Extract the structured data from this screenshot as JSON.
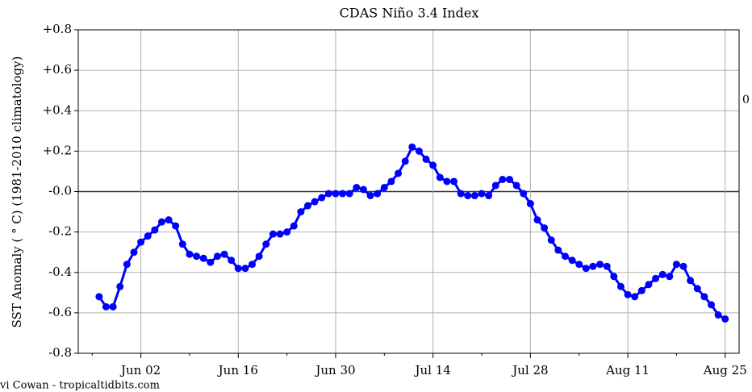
{
  "chart_data": {
    "type": "line",
    "title": "CDAS Niño 3.4 Index",
    "y_label": "SST Anomaly ( ° C) (1981-2010 climatology)",
    "right_label": "0",
    "credit": "vi Cowan - tropicaltidbits.com",
    "color": "#0000ff",
    "x": [
      "May 27",
      "May 28",
      "May 29",
      "May 30",
      "May 31",
      "Jun 01",
      "Jun 02",
      "Jun 03",
      "Jun 04",
      "Jun 05",
      "Jun 06",
      "Jun 07",
      "Jun 08",
      "Jun 09",
      "Jun 10",
      "Jun 11",
      "Jun 12",
      "Jun 13",
      "Jun 14",
      "Jun 15",
      "Jun 16",
      "Jun 17",
      "Jun 18",
      "Jun 19",
      "Jun 20",
      "Jun 21",
      "Jun 22",
      "Jun 23",
      "Jun 24",
      "Jun 25",
      "Jun 26",
      "Jun 27",
      "Jun 28",
      "Jun 29",
      "Jun 30",
      "Jul 01",
      "Jul 02",
      "Jul 03",
      "Jul 04",
      "Jul 05",
      "Jul 06",
      "Jul 07",
      "Jul 08",
      "Jul 09",
      "Jul 10",
      "Jul 11",
      "Jul 12",
      "Jul 13",
      "Jul 14",
      "Jul 15",
      "Jul 16",
      "Jul 17",
      "Jul 18",
      "Jul 19",
      "Jul 20",
      "Jul 21",
      "Jul 22",
      "Jul 23",
      "Jul 24",
      "Jul 25",
      "Jul 26",
      "Jul 27",
      "Jul 28",
      "Jul 29",
      "Jul 30",
      "Jul 31",
      "Aug 01",
      "Aug 02",
      "Aug 03",
      "Aug 04",
      "Aug 05",
      "Aug 06",
      "Aug 07",
      "Aug 08",
      "Aug 09",
      "Aug 10",
      "Aug 11",
      "Aug 12",
      "Aug 13",
      "Aug 14",
      "Aug 15",
      "Aug 16",
      "Aug 17",
      "Aug 18",
      "Aug 19",
      "Aug 20",
      "Aug 21",
      "Aug 22",
      "Aug 23",
      "Aug 24",
      "Aug 25"
    ],
    "values": [
      -0.52,
      -0.57,
      -0.57,
      -0.47,
      -0.36,
      -0.3,
      -0.25,
      -0.22,
      -0.19,
      -0.15,
      -0.14,
      -0.17,
      -0.26,
      -0.31,
      -0.32,
      -0.33,
      -0.35,
      -0.32,
      -0.31,
      -0.34,
      -0.38,
      -0.38,
      -0.36,
      -0.32,
      -0.26,
      -0.21,
      -0.21,
      -0.2,
      -0.17,
      -0.1,
      -0.07,
      -0.05,
      -0.03,
      -0.01,
      -0.01,
      -0.01,
      -0.01,
      0.02,
      0.01,
      -0.02,
      -0.01,
      0.02,
      0.05,
      0.09,
      0.15,
      0.22,
      0.2,
      0.16,
      0.13,
      0.07,
      0.05,
      0.05,
      -0.01,
      -0.02,
      -0.02,
      -0.01,
      -0.02,
      0.03,
      0.06,
      0.06,
      0.03,
      -0.01,
      -0.06,
      -0.14,
      -0.18,
      -0.24,
      -0.29,
      -0.32,
      -0.34,
      -0.36,
      -0.38,
      -0.37,
      -0.36,
      -0.37,
      -0.42,
      -0.47,
      -0.51,
      -0.52,
      -0.49,
      -0.46,
      -0.43,
      -0.41,
      -0.42,
      -0.36,
      -0.37,
      -0.44,
      -0.48,
      -0.52,
      -0.56,
      -0.61,
      -0.63
    ],
    "xlim": [
      "May 24",
      "Aug 27"
    ],
    "xticks": [
      "Jun 02",
      "Jun 16",
      "Jun 30",
      "Jul 14",
      "Jul 28",
      "Aug 11",
      "Aug 25"
    ],
    "ylim": [
      -0.8,
      0.8
    ],
    "yticks": [
      {
        "value": 0.8,
        "label": "+0.8"
      },
      {
        "value": 0.6,
        "label": "+0.6"
      },
      {
        "value": 0.4,
        "label": "+0.4"
      },
      {
        "value": 0.2,
        "label": "+0.2"
      },
      {
        "value": 0,
        "label": "-0.0"
      },
      {
        "value": -0.2,
        "label": "-0.2"
      },
      {
        "value": -0.4,
        "label": "-0.4"
      },
      {
        "value": -0.6,
        "label": "-0.6"
      },
      {
        "value": -0.8,
        "label": "-0.8"
      }
    ],
    "grid": true
  }
}
